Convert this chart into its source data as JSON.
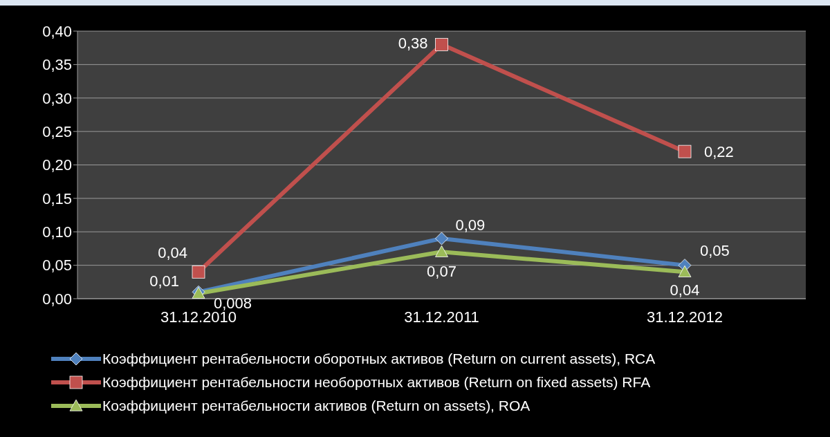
{
  "chart_data": {
    "type": "line",
    "categories": [
      "31.12.2010",
      "31.12.2011",
      "31.12.2012"
    ],
    "series": [
      {
        "name": "Коэффициент рентабельности оборотных активов (Return on current assets), RCA",
        "color": "#4f81bd",
        "marker": "diamond",
        "values": [
          0.01,
          0.09,
          0.05
        ],
        "value_labels": [
          "0,01",
          "0,09",
          "0,05"
        ]
      },
      {
        "name": "Коэффициент рентабельности необоротных активов (Return on fixed assets) RFA",
        "color": "#c0504d",
        "marker": "square",
        "values": [
          0.04,
          0.38,
          0.22
        ],
        "value_labels": [
          "0,04",
          "0,38",
          "0,22"
        ]
      },
      {
        "name": "Коэффициент рентабельности активов (Return on assets), ROA",
        "color": "#9bbb59",
        "marker": "triangle",
        "values": [
          0.008,
          0.07,
          0.04
        ],
        "value_labels": [
          "0,008",
          "0,07",
          "0,04"
        ]
      }
    ],
    "ylim": [
      0,
      0.4
    ],
    "yticks": [
      {
        "value": 0,
        "label": "0,00"
      },
      {
        "value": 0.05,
        "label": "0,05"
      },
      {
        "value": 0.1,
        "label": "0,10"
      },
      {
        "value": 0.15,
        "label": "0,15"
      },
      {
        "value": 0.2,
        "label": "0,20"
      },
      {
        "value": 0.25,
        "label": "0,25"
      },
      {
        "value": 0.3,
        "label": "0,30"
      },
      {
        "value": 0.35,
        "label": "0,35"
      },
      {
        "value": 0.4,
        "label": "0,40"
      }
    ],
    "grid": "y",
    "legend": "bottom"
  }
}
